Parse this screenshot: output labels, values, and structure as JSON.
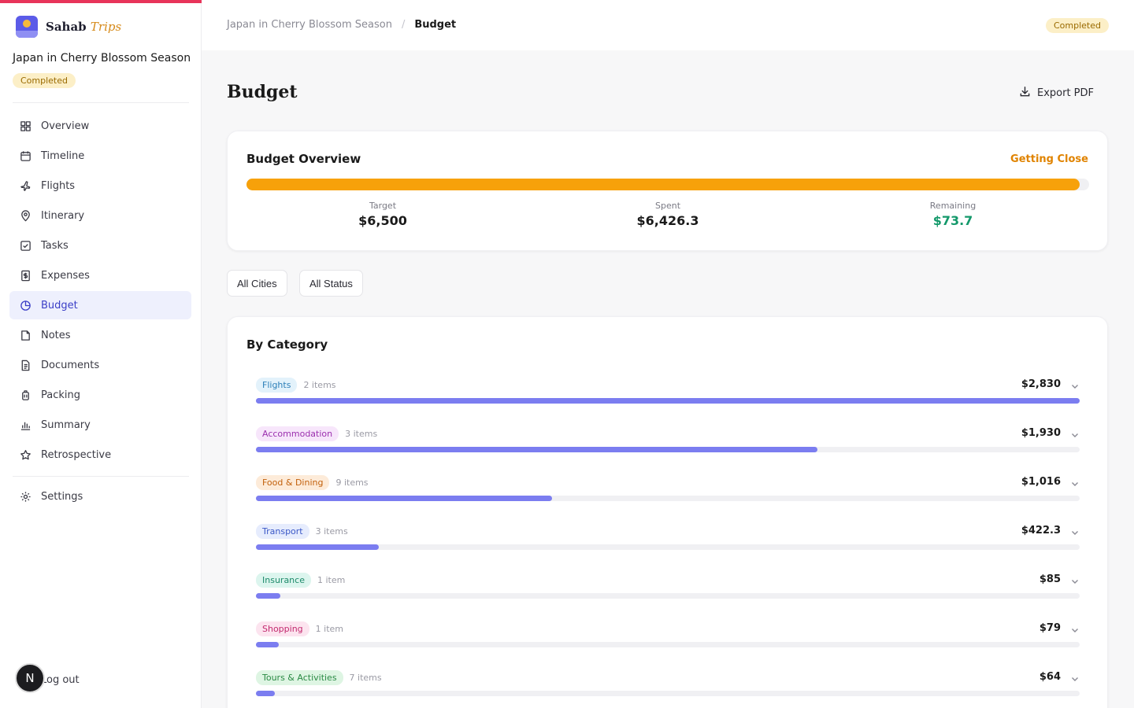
{
  "brand": {
    "name": "Sahab",
    "accent": "Trips"
  },
  "trip": {
    "title": "Japan in Cherry Blossom Season",
    "status": "Completed"
  },
  "sidebar": {
    "items": [
      {
        "label": "Overview",
        "icon": "grid-icon"
      },
      {
        "label": "Timeline",
        "icon": "calendar-icon"
      },
      {
        "label": "Flights",
        "icon": "plane-icon"
      },
      {
        "label": "Itinerary",
        "icon": "map-pin-icon"
      },
      {
        "label": "Tasks",
        "icon": "checkbox-icon"
      },
      {
        "label": "Expenses",
        "icon": "receipt-icon"
      },
      {
        "label": "Budget",
        "icon": "pie-chart-icon",
        "active": true
      },
      {
        "label": "Notes",
        "icon": "note-icon"
      },
      {
        "label": "Documents",
        "icon": "document-icon"
      },
      {
        "label": "Packing",
        "icon": "luggage-icon"
      },
      {
        "label": "Summary",
        "icon": "bar-chart-icon"
      },
      {
        "label": "Retrospective",
        "icon": "star-icon"
      }
    ],
    "settings_label": "Settings",
    "logout_label": "Log out",
    "avatar_initial": "N"
  },
  "breadcrumb": {
    "parent": "Japan in Cherry Blossom Season",
    "separator": "/",
    "current": "Budget"
  },
  "page": {
    "title": "Budget",
    "export_label": "Export PDF"
  },
  "overview": {
    "title": "Budget Overview",
    "status": "Getting Close",
    "progress_pct": 98.9,
    "target_label": "Target",
    "target_value": "$6,500",
    "spent_label": "Spent",
    "spent_value": "$6,426.3",
    "remaining_label": "Remaining",
    "remaining_value": "$73.7"
  },
  "filters": {
    "cities": "All Cities",
    "status": "All Status"
  },
  "categories": {
    "title": "By Category",
    "rows": [
      {
        "name": "Flights",
        "count": "2 items",
        "amount": "$2,830",
        "pct": 100,
        "bg": "#e3f2fb",
        "fg": "#2c7fb8"
      },
      {
        "name": "Accommodation",
        "count": "3 items",
        "amount": "$1,930",
        "pct": 68.2,
        "bg": "#f7e6fb",
        "fg": "#9b2fae"
      },
      {
        "name": "Food & Dining",
        "count": "9 items",
        "amount": "$1,016",
        "pct": 35.9,
        "bg": "#fdebd9",
        "fg": "#c2600c"
      },
      {
        "name": "Transport",
        "count": "3 items",
        "amount": "$422.3",
        "pct": 14.9,
        "bg": "#e6ecfd",
        "fg": "#3b58c7"
      },
      {
        "name": "Insurance",
        "count": "1 item",
        "amount": "$85",
        "pct": 3.0,
        "bg": "#dcf5ee",
        "fg": "#1d8a6a"
      },
      {
        "name": "Shopping",
        "count": "1 item",
        "amount": "$79",
        "pct": 2.8,
        "bg": "#fce4ef",
        "fg": "#c2296e"
      },
      {
        "name": "Tours & Activities",
        "count": "7 items",
        "amount": "$64",
        "pct": 2.3,
        "bg": "#def5e3",
        "fg": "#2a8a44"
      }
    ]
  },
  "colors": {
    "accent": "#e8345a",
    "progress": "#f7a10a",
    "bar": "#7b7df0",
    "remaining": "#14996b",
    "active_nav": "#3b3fc7"
  }
}
